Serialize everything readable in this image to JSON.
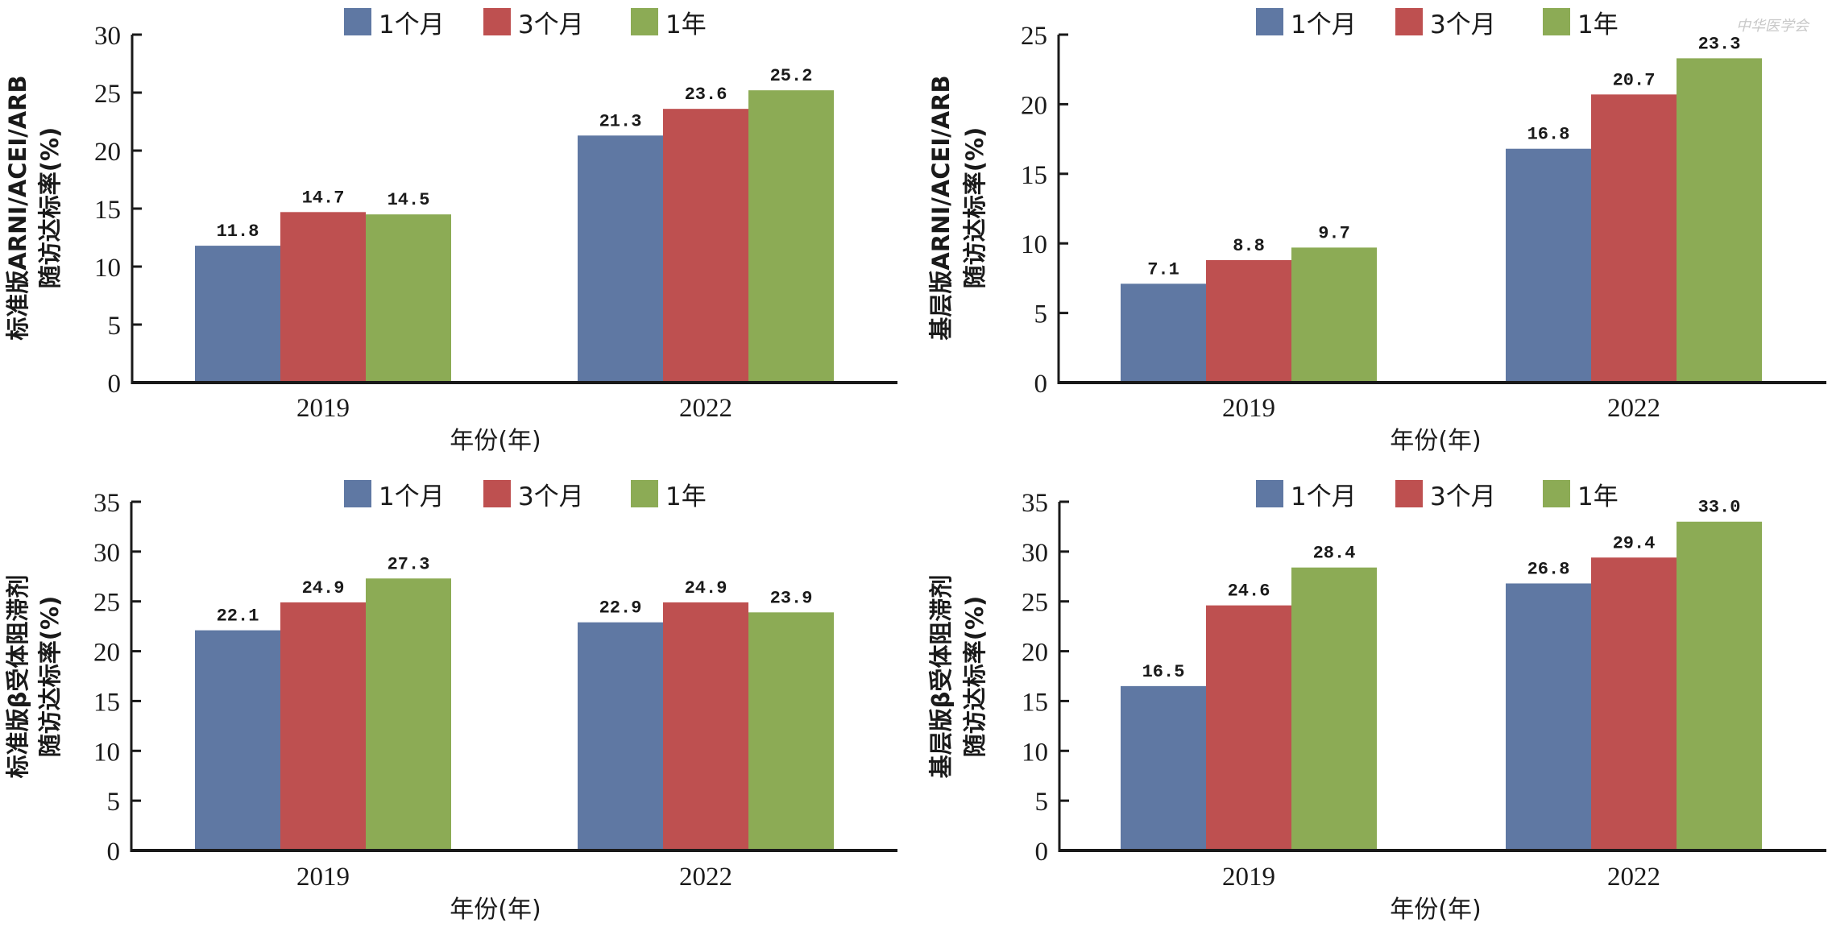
{
  "figure": {
    "watermark": "中华医学会",
    "colors": {
      "series_1": "#5f78a3",
      "series_2": "#be5050",
      "series_3": "#8cab55",
      "axis": "#1a1a1a",
      "text": "#1a1a1a"
    }
  },
  "chart_data": [
    {
      "id": "standard-arni",
      "type": "bar",
      "title": "",
      "ylabel_lines": [
        "标准版ARNI/ACEI/ARB",
        "随访达标率(%)"
      ],
      "xlabel": "年份(年)",
      "categories": [
        "2019",
        "2022"
      ],
      "ylim": [
        0,
        30
      ],
      "yticks": [
        0,
        5,
        10,
        15,
        20,
        25,
        30
      ],
      "grid": false,
      "legend_position": "top",
      "series": [
        {
          "name": "1个月",
          "color": "#5f78a3",
          "values": [
            11.8,
            21.3
          ],
          "labels": [
            "11.8",
            "21.3"
          ]
        },
        {
          "name": "3个月",
          "color": "#be5050",
          "values": [
            14.7,
            23.6
          ],
          "labels": [
            "14.7",
            "23.6"
          ]
        },
        {
          "name": "1年",
          "color": "#8cab55",
          "values": [
            14.5,
            25.2
          ],
          "labels": [
            "14.5",
            "25.2"
          ]
        }
      ]
    },
    {
      "id": "primary-arni",
      "type": "bar",
      "title": "",
      "ylabel_lines": [
        "基层版ARNI/ACEI/ARB",
        "随访达标率(%)"
      ],
      "xlabel": "年份(年)",
      "categories": [
        "2019",
        "2022"
      ],
      "ylim": [
        0,
        25
      ],
      "yticks": [
        0,
        5,
        10,
        15,
        20,
        25
      ],
      "grid": false,
      "legend_position": "top",
      "series": [
        {
          "name": "1个月",
          "color": "#5f78a3",
          "values": [
            7.1,
            16.8
          ],
          "labels": [
            "7.1",
            "16.8"
          ]
        },
        {
          "name": "3个月",
          "color": "#be5050",
          "values": [
            8.8,
            20.7
          ],
          "labels": [
            "8.8",
            "20.7"
          ]
        },
        {
          "name": "1年",
          "color": "#8cab55",
          "values": [
            9.7,
            23.3
          ],
          "labels": [
            "9.7",
            "23.3"
          ]
        }
      ]
    },
    {
      "id": "standard-beta",
      "type": "bar",
      "title": "",
      "ylabel_lines": [
        "标准版β受体阻滞剂",
        "随访达标率(%)"
      ],
      "xlabel": "年份(年)",
      "categories": [
        "2019",
        "2022"
      ],
      "ylim": [
        0,
        35
      ],
      "yticks": [
        0,
        5,
        10,
        15,
        20,
        25,
        30,
        35
      ],
      "grid": false,
      "legend_position": "top",
      "series": [
        {
          "name": "1个月",
          "color": "#5f78a3",
          "values": [
            22.1,
            22.9
          ],
          "labels": [
            "22.1",
            "22.9"
          ]
        },
        {
          "name": "3个月",
          "color": "#be5050",
          "values": [
            24.9,
            24.9
          ],
          "labels": [
            "24.9",
            "24.9"
          ]
        },
        {
          "name": "1年",
          "color": "#8cab55",
          "values": [
            27.3,
            23.9
          ],
          "labels": [
            "27.3",
            "23.9"
          ]
        }
      ]
    },
    {
      "id": "primary-beta",
      "type": "bar",
      "title": "",
      "ylabel_lines": [
        "基层版β受体阻滞剂",
        "随访达标率(%)"
      ],
      "xlabel": "年份(年)",
      "categories": [
        "2019",
        "2022"
      ],
      "ylim": [
        0,
        35
      ],
      "yticks": [
        0,
        5,
        10,
        15,
        20,
        25,
        30,
        35
      ],
      "grid": false,
      "legend_position": "top",
      "series": [
        {
          "name": "1个月",
          "color": "#5f78a3",
          "values": [
            16.5,
            26.8
          ],
          "labels": [
            "16.5",
            "26.8"
          ]
        },
        {
          "name": "3个月",
          "color": "#be5050",
          "values": [
            24.6,
            29.4
          ],
          "labels": [
            "24.6",
            "29.4"
          ]
        },
        {
          "name": "1年",
          "color": "#8cab55",
          "values": [
            28.4,
            33.0
          ],
          "labels": [
            "28.4",
            "33.0"
          ]
        }
      ]
    }
  ]
}
